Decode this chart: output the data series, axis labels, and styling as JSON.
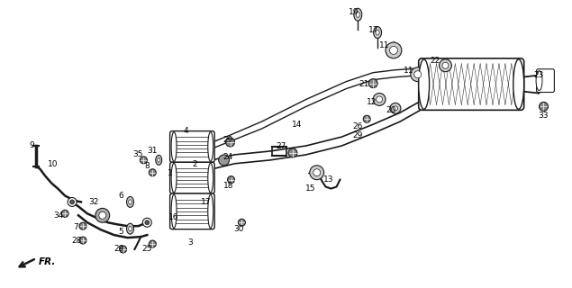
{
  "bg_color": "#ffffff",
  "line_color": "#1a1a1a",
  "gray_color": "#555555",
  "dark_color": "#222222",
  "figsize": [
    6.35,
    3.2
  ],
  "dpi": 100
}
